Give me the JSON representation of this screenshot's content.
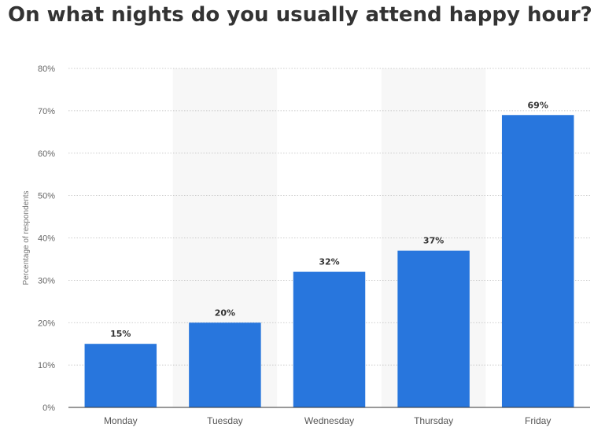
{
  "chart_data": {
    "type": "bar",
    "title": "On what nights do you usually attend happy hour?",
    "xlabel": "",
    "ylabel": "Percentage of respondents",
    "categories": [
      "Monday",
      "Tuesday",
      "Wednesday",
      "Thursday",
      "Friday"
    ],
    "values": [
      15,
      20,
      32,
      37,
      69
    ],
    "value_labels": [
      "15%",
      "20%",
      "32%",
      "37%",
      "69%"
    ],
    "ylim": [
      0,
      80
    ],
    "y_ticks": [
      0,
      10,
      20,
      30,
      40,
      50,
      60,
      70,
      80
    ],
    "y_tick_labels": [
      "0%",
      "10%",
      "20%",
      "30%",
      "40%",
      "50%",
      "60%",
      "70%",
      "80%"
    ],
    "grid": true,
    "bar_color": "#2876dd",
    "alternate_band_color": "#f7f7f7"
  }
}
